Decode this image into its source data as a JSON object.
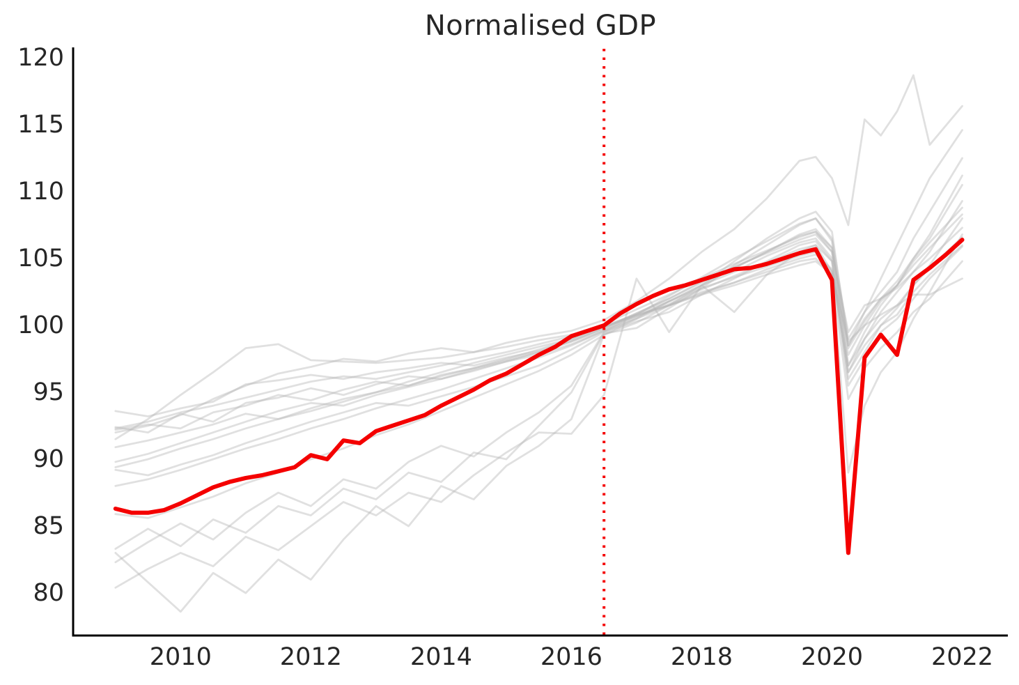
{
  "chart_data": {
    "type": "line",
    "title": "Normalised GDP",
    "xlabel": "",
    "ylabel": "",
    "grid": false,
    "legend": "none",
    "xlim": [
      2008.35,
      2022.7
    ],
    "ylim": [
      76.82,
      120.68
    ],
    "x_ticks": [
      2010,
      2012,
      2014,
      2016,
      2018,
      2020,
      2022
    ],
    "y_ticks": [
      80,
      85,
      90,
      95,
      100,
      105,
      110,
      115,
      120
    ],
    "reference_line": {
      "x": 2016.5,
      "orientation": "vertical",
      "style": "dotted",
      "color": "#f40000",
      "meaning": "normalisation point (index = 100)"
    },
    "highlight_series": {
      "name": "highlighted-gdp-series",
      "color": "#f40000",
      "line_width": 6,
      "x": [
        2009.0,
        2009.25,
        2009.5,
        2009.75,
        2010.0,
        2010.25,
        2010.5,
        2010.75,
        2011.0,
        2011.25,
        2011.5,
        2011.75,
        2012.0,
        2012.25,
        2012.5,
        2012.75,
        2013.0,
        2013.25,
        2013.5,
        2013.75,
        2014.0,
        2014.25,
        2014.5,
        2014.75,
        2015.0,
        2015.25,
        2015.5,
        2015.75,
        2016.0,
        2016.25,
        2016.5,
        2016.75,
        2017.0,
        2017.25,
        2017.5,
        2017.75,
        2018.0,
        2018.25,
        2018.5,
        2018.75,
        2019.0,
        2019.25,
        2019.5,
        2019.75,
        2020.0,
        2020.25,
        2020.5,
        2020.75,
        2021.0,
        2021.25,
        2021.5,
        2021.75,
        2022.0
      ],
      "values": [
        86.3,
        86.0,
        86.0,
        86.2,
        86.7,
        87.3,
        87.9,
        88.3,
        88.6,
        88.8,
        89.1,
        89.4,
        90.3,
        90.0,
        91.4,
        91.2,
        92.1,
        92.5,
        92.9,
        93.3,
        94.0,
        94.6,
        95.2,
        95.9,
        96.4,
        97.1,
        97.8,
        98.4,
        99.2,
        99.6,
        100.0,
        100.9,
        101.6,
        102.2,
        102.7,
        103.0,
        103.4,
        103.8,
        104.2,
        104.3,
        104.6,
        105.0,
        105.4,
        105.7,
        103.4,
        83.0,
        97.6,
        99.3,
        97.8,
        103.4,
        104.3,
        105.3,
        106.4
      ]
    },
    "background_series_x": [
      2009.0,
      2009.5,
      2010.0,
      2010.5,
      2011.0,
      2011.5,
      2012.0,
      2012.5,
      2013.0,
      2013.5,
      2014.0,
      2014.5,
      2015.0,
      2015.5,
      2016.0,
      2016.5,
      2017.0,
      2017.5,
      2018.0,
      2018.5,
      2019.0,
      2019.5,
      2019.75,
      2020.0,
      2020.25,
      2020.5,
      2020.75,
      2021.0,
      2021.25,
      2021.5,
      2022.0
    ],
    "background_series": [
      {
        "name": "gdp-series-01",
        "values": [
          91.5,
          93.0,
          94.8,
          96.5,
          98.3,
          98.6,
          97.4,
          97.3,
          97.2,
          97.4,
          97.6,
          98.0,
          98.4,
          98.9,
          99.3,
          99.9,
          100.8,
          101.8,
          102.8,
          103.6,
          104.4,
          105.2,
          105.5,
          104.0,
          96.5,
          98.5,
          100.0,
          100.8,
          102.5,
          103.8,
          106.0
        ]
      },
      {
        "name": "gdp-series-02",
        "values": [
          93.6,
          93.2,
          93.8,
          94.3,
          95.6,
          95.9,
          96.3,
          96.0,
          96.5,
          96.8,
          97.2,
          97.0,
          97.6,
          98.1,
          98.9,
          99.8,
          100.9,
          102.0,
          103.3,
          104.4,
          105.4,
          106.4,
          106.8,
          105.5,
          99.5,
          101.5,
          102.0,
          102.8,
          104.0,
          105.0,
          107.3
        ]
      },
      {
        "name": "gdp-series-03",
        "values": [
          92.4,
          92.0,
          93.4,
          92.8,
          94.2,
          94.6,
          95.3,
          94.8,
          95.6,
          96.2,
          96.0,
          96.6,
          97.3,
          97.8,
          98.6,
          99.6,
          100.5,
          101.5,
          102.5,
          103.2,
          104.2,
          105.0,
          105.3,
          104.2,
          97.0,
          99.0,
          100.5,
          101.5,
          103.0,
          104.3,
          106.6
        ]
      },
      {
        "name": "gdp-series-04",
        "values": [
          92.2,
          92.6,
          92.3,
          93.5,
          94.0,
          94.8,
          94.4,
          95.2,
          95.8,
          95.5,
          96.3,
          96.8,
          97.5,
          98.2,
          99.0,
          100.1,
          101.2,
          102.3,
          103.5,
          104.6,
          105.6,
          106.6,
          107.0,
          105.8,
          98.5,
          100.5,
          102.0,
          103.0,
          104.5,
          105.8,
          108.3
        ]
      },
      {
        "name": "gdp-series-05",
        "values": [
          92.0,
          92.5,
          93.3,
          94.5,
          95.5,
          96.4,
          96.9,
          97.5,
          97.3,
          97.9,
          98.3,
          98.0,
          98.7,
          99.2,
          99.6,
          100.4,
          101.8,
          103.5,
          105.5,
          107.2,
          109.5,
          112.3,
          112.6,
          111.0,
          107.5,
          115.4,
          114.2,
          116.0,
          118.7,
          113.5,
          116.4
        ]
      },
      {
        "name": "gdp-series-06",
        "values": [
          90.9,
          91.4,
          92.0,
          92.6,
          93.4,
          93.0,
          93.8,
          94.5,
          95.0,
          95.5,
          96.2,
          96.8,
          97.4,
          98.0,
          98.8,
          99.7,
          100.7,
          101.6,
          102.7,
          103.7,
          104.7,
          105.7,
          106.0,
          104.8,
          95.5,
          97.5,
          99.5,
          100.5,
          102.0,
          103.5,
          105.9
        ]
      },
      {
        "name": "gdp-series-07",
        "values": [
          89.8,
          90.4,
          91.2,
          92.0,
          92.8,
          93.6,
          94.2,
          94.0,
          94.8,
          95.4,
          96.0,
          96.7,
          97.3,
          98.0,
          98.8,
          99.8,
          100.9,
          102.0,
          103.2,
          104.3,
          105.5,
          106.7,
          107.0,
          105.5,
          96.5,
          99.0,
          101.0,
          102.5,
          104.0,
          105.5,
          109.3
        ]
      },
      {
        "name": "gdp-series-08",
        "values": [
          89.2,
          88.8,
          89.6,
          90.3,
          91.2,
          92.0,
          92.8,
          93.5,
          94.2,
          94.0,
          94.7,
          95.4,
          96.2,
          97.0,
          98.2,
          99.5,
          100.6,
          101.8,
          103.0,
          104.0,
          105.2,
          106.2,
          106.5,
          105.0,
          97.8,
          100.0,
          101.8,
          103.0,
          104.8,
          106.2,
          108.8
        ]
      },
      {
        "name": "gdp-series-09",
        "values": [
          88.0,
          88.5,
          89.2,
          90.0,
          90.8,
          91.5,
          92.3,
          93.0,
          93.8,
          94.5,
          95.2,
          96.0,
          96.8,
          97.6,
          98.5,
          99.6,
          100.8,
          102.2,
          103.6,
          105.0,
          106.3,
          107.6,
          108.0,
          106.5,
          99.0,
          101.0,
          102.5,
          104.0,
          106.5,
          108.5,
          112.5
        ]
      },
      {
        "name": "gdp-series-10",
        "values": [
          85.9,
          85.6,
          86.4,
          87.2,
          88.2,
          89.0,
          90.0,
          90.8,
          91.8,
          92.6,
          93.6,
          94.6,
          95.6,
          96.6,
          97.8,
          99.3,
          100.5,
          101.8,
          103.0,
          104.3,
          105.5,
          106.8,
          107.2,
          105.8,
          98.3,
          100.3,
          102.0,
          103.3,
          105.0,
          106.5,
          110.5
        ]
      },
      {
        "name": "gdp-series-11",
        "values": [
          83.3,
          84.8,
          83.5,
          85.5,
          84.5,
          86.5,
          85.8,
          87.8,
          87.0,
          89.0,
          88.3,
          90.5,
          90.0,
          92.5,
          95.0,
          99.4,
          99.8,
          101.3,
          102.8,
          104.5,
          106.0,
          107.5,
          108.0,
          106.3,
          97.0,
          99.5,
          101.5,
          103.0,
          105.0,
          106.8,
          111.2
        ]
      },
      {
        "name": "gdp-series-12",
        "values": [
          83.0,
          80.8,
          78.6,
          81.5,
          80.0,
          82.5,
          81.0,
          84.0,
          86.5,
          85.0,
          88.0,
          87.0,
          89.5,
          91.0,
          93.0,
          99.3,
          100.2,
          101.5,
          103.0,
          104.8,
          106.5,
          108.0,
          108.5,
          107.0,
          98.5,
          101.0,
          103.5,
          106.0,
          108.5,
          111.0,
          114.6
        ]
      },
      {
        "name": "gdp-series-13",
        "values": [
          82.3,
          83.8,
          85.2,
          84.0,
          86.0,
          87.5,
          86.5,
          88.5,
          87.8,
          89.8,
          91.0,
          90.2,
          92.0,
          93.5,
          95.5,
          99.5,
          100.3,
          101.0,
          102.3,
          103.5,
          104.8,
          106.0,
          106.3,
          104.8,
          96.0,
          98.0,
          100.0,
          101.3,
          103.0,
          104.5,
          108.0
        ]
      },
      {
        "name": "gdp-series-14",
        "values": [
          80.4,
          81.8,
          83.0,
          82.0,
          84.2,
          83.2,
          85.0,
          86.8,
          85.8,
          87.5,
          86.8,
          88.8,
          90.5,
          92.0,
          91.9,
          94.8,
          103.5,
          99.5,
          103.0,
          101.0,
          103.8,
          105.5,
          106.0,
          104.0,
          89.0,
          94.0,
          96.5,
          98.0,
          100.5,
          102.5,
          106.8
        ]
      },
      {
        "name": "gdp-series-15",
        "values": [
          92.3,
          92.8,
          93.5,
          94.0,
          94.6,
          95.2,
          95.8,
          96.2,
          96.0,
          96.5,
          97.0,
          97.5,
          98.0,
          98.6,
          99.2,
          100.0,
          100.8,
          101.5,
          102.3,
          103.0,
          103.8,
          104.5,
          104.8,
          103.8,
          98.8,
          100.0,
          100.8,
          101.5,
          102.3,
          102.3,
          103.5
        ]
      },
      {
        "name": "gdp-series-16",
        "values": [
          89.4,
          90.0,
          90.8,
          91.5,
          92.3,
          93.0,
          93.6,
          94.3,
          95.0,
          95.8,
          96.5,
          97.2,
          97.8,
          98.4,
          99.0,
          99.9,
          100.7,
          101.5,
          102.4,
          103.2,
          104.0,
          104.8,
          105.0,
          103.8,
          94.5,
          96.8,
          98.3,
          99.5,
          101.0,
          102.0,
          104.8
        ]
      }
    ],
    "style": {
      "background_line_color": "#b4b4b4",
      "background_line_opacity": 0.42,
      "background_line_width": 2.8,
      "highlight_color": "#f40000",
      "text_color": "#262626",
      "spine_color": "#000000",
      "plot_background": "#ffffff"
    }
  }
}
